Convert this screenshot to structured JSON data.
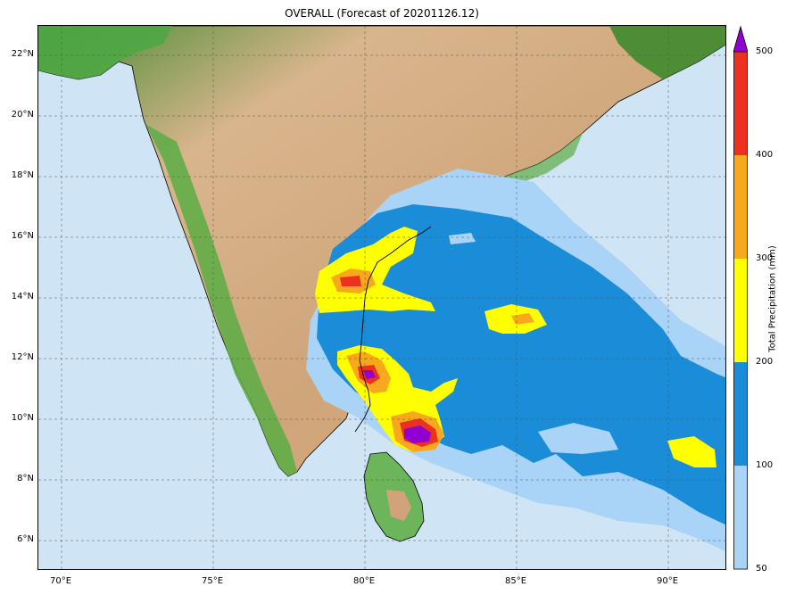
{
  "title": "OVERALL (Forecast of 20201126.12)",
  "lat_labels": [
    "22°N",
    "20°N",
    "18°N",
    "16°N",
    "14°N",
    "12°N",
    "10°N",
    "8°N",
    "6°N"
  ],
  "lon_labels": [
    "70°E",
    "75°E",
    "80°E",
    "85°E",
    "90°E"
  ],
  "colorbar": {
    "title": "Total Precipitation (mm)",
    "ticks": [
      "50",
      "100",
      "200",
      "300",
      "400",
      "500"
    ],
    "colors": [
      "#a9d4f8",
      "#1a8cd8",
      "#ffff00",
      "#f8a81c",
      "#ee3020",
      "#9000d0"
    ]
  },
  "colors": {
    "ocean": "#cfe4f4",
    "land_low": "#5cae4e",
    "land_mid": "#d8b48a",
    "band_50_100": "#a9d4f8",
    "band_100_200": "#1a8cd8",
    "band_200_300": "#ffff00",
    "band_300_400": "#f8a81c",
    "band_400_500": "#ee3020",
    "band_over_500": "#9000d0"
  }
}
